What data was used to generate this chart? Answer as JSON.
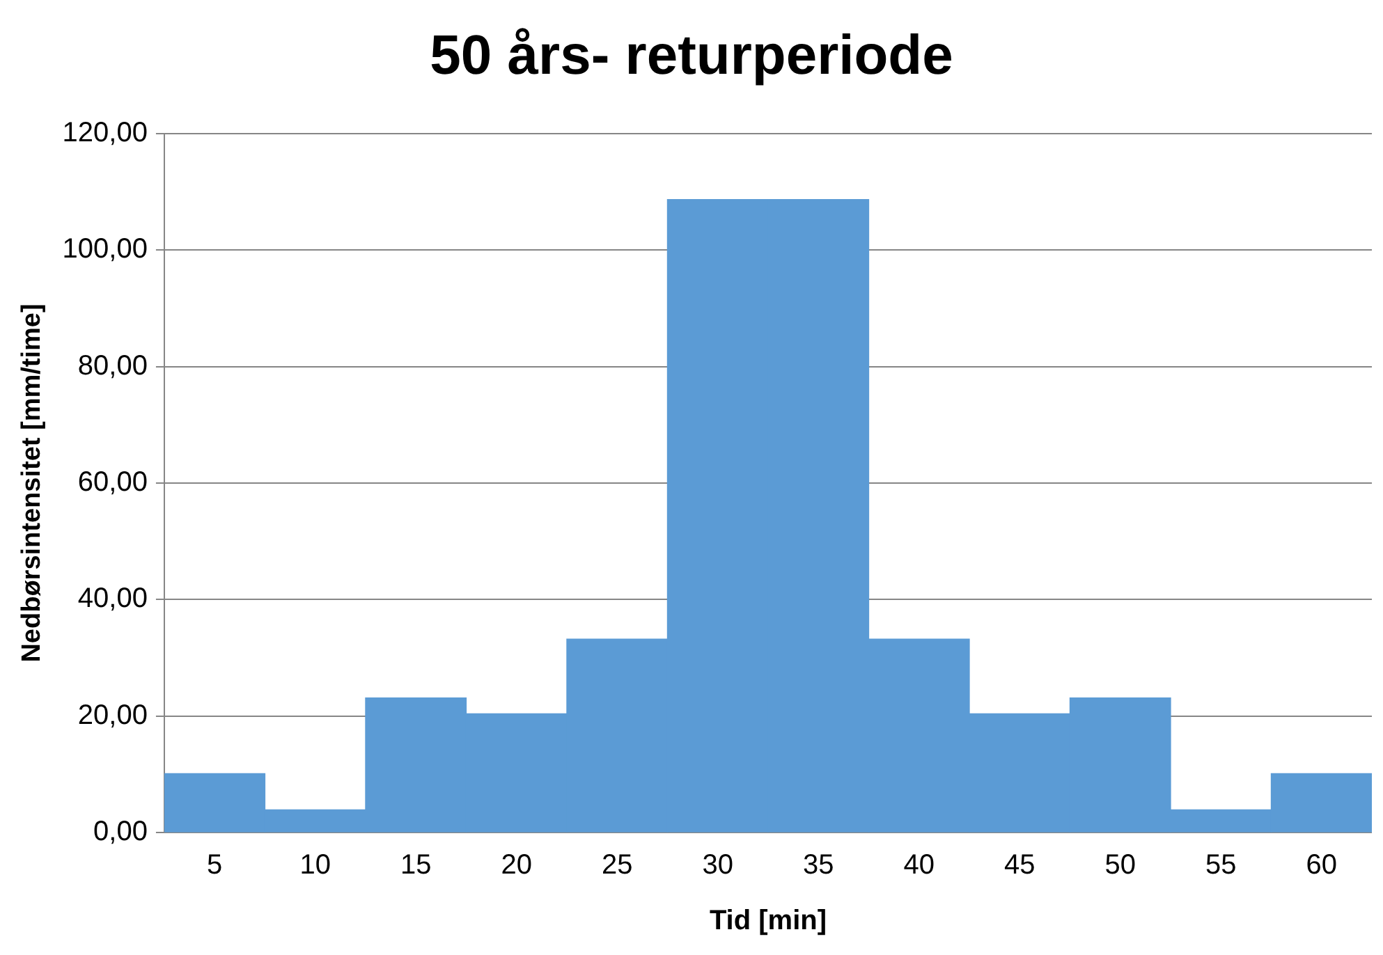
{
  "chart_data": {
    "type": "bar",
    "title": "50 års- returperiode",
    "xlabel": "Tid [min]",
    "ylabel": "Nedbørsintensitet [mm/time]",
    "categories": [
      "5",
      "10",
      "15",
      "20",
      "25",
      "30",
      "35",
      "40",
      "45",
      "50",
      "55",
      "60"
    ],
    "values": [
      10.1,
      3.9,
      23.1,
      20.4,
      33.2,
      108.7,
      108.7,
      33.2,
      20.4,
      23.1,
      3.9,
      10.1
    ],
    "color": "#5b9bd5",
    "ylim": [
      0,
      120
    ],
    "yticks": [
      {
        "value": 0,
        "label": "0,00"
      },
      {
        "value": 20,
        "label": "20,00"
      },
      {
        "value": 40,
        "label": "40,00"
      },
      {
        "value": 60,
        "label": "60,00"
      },
      {
        "value": 80,
        "label": "80,00"
      },
      {
        "value": 100,
        "label": "100,00"
      },
      {
        "value": 120,
        "label": "120,00"
      }
    ],
    "grid": "y"
  }
}
